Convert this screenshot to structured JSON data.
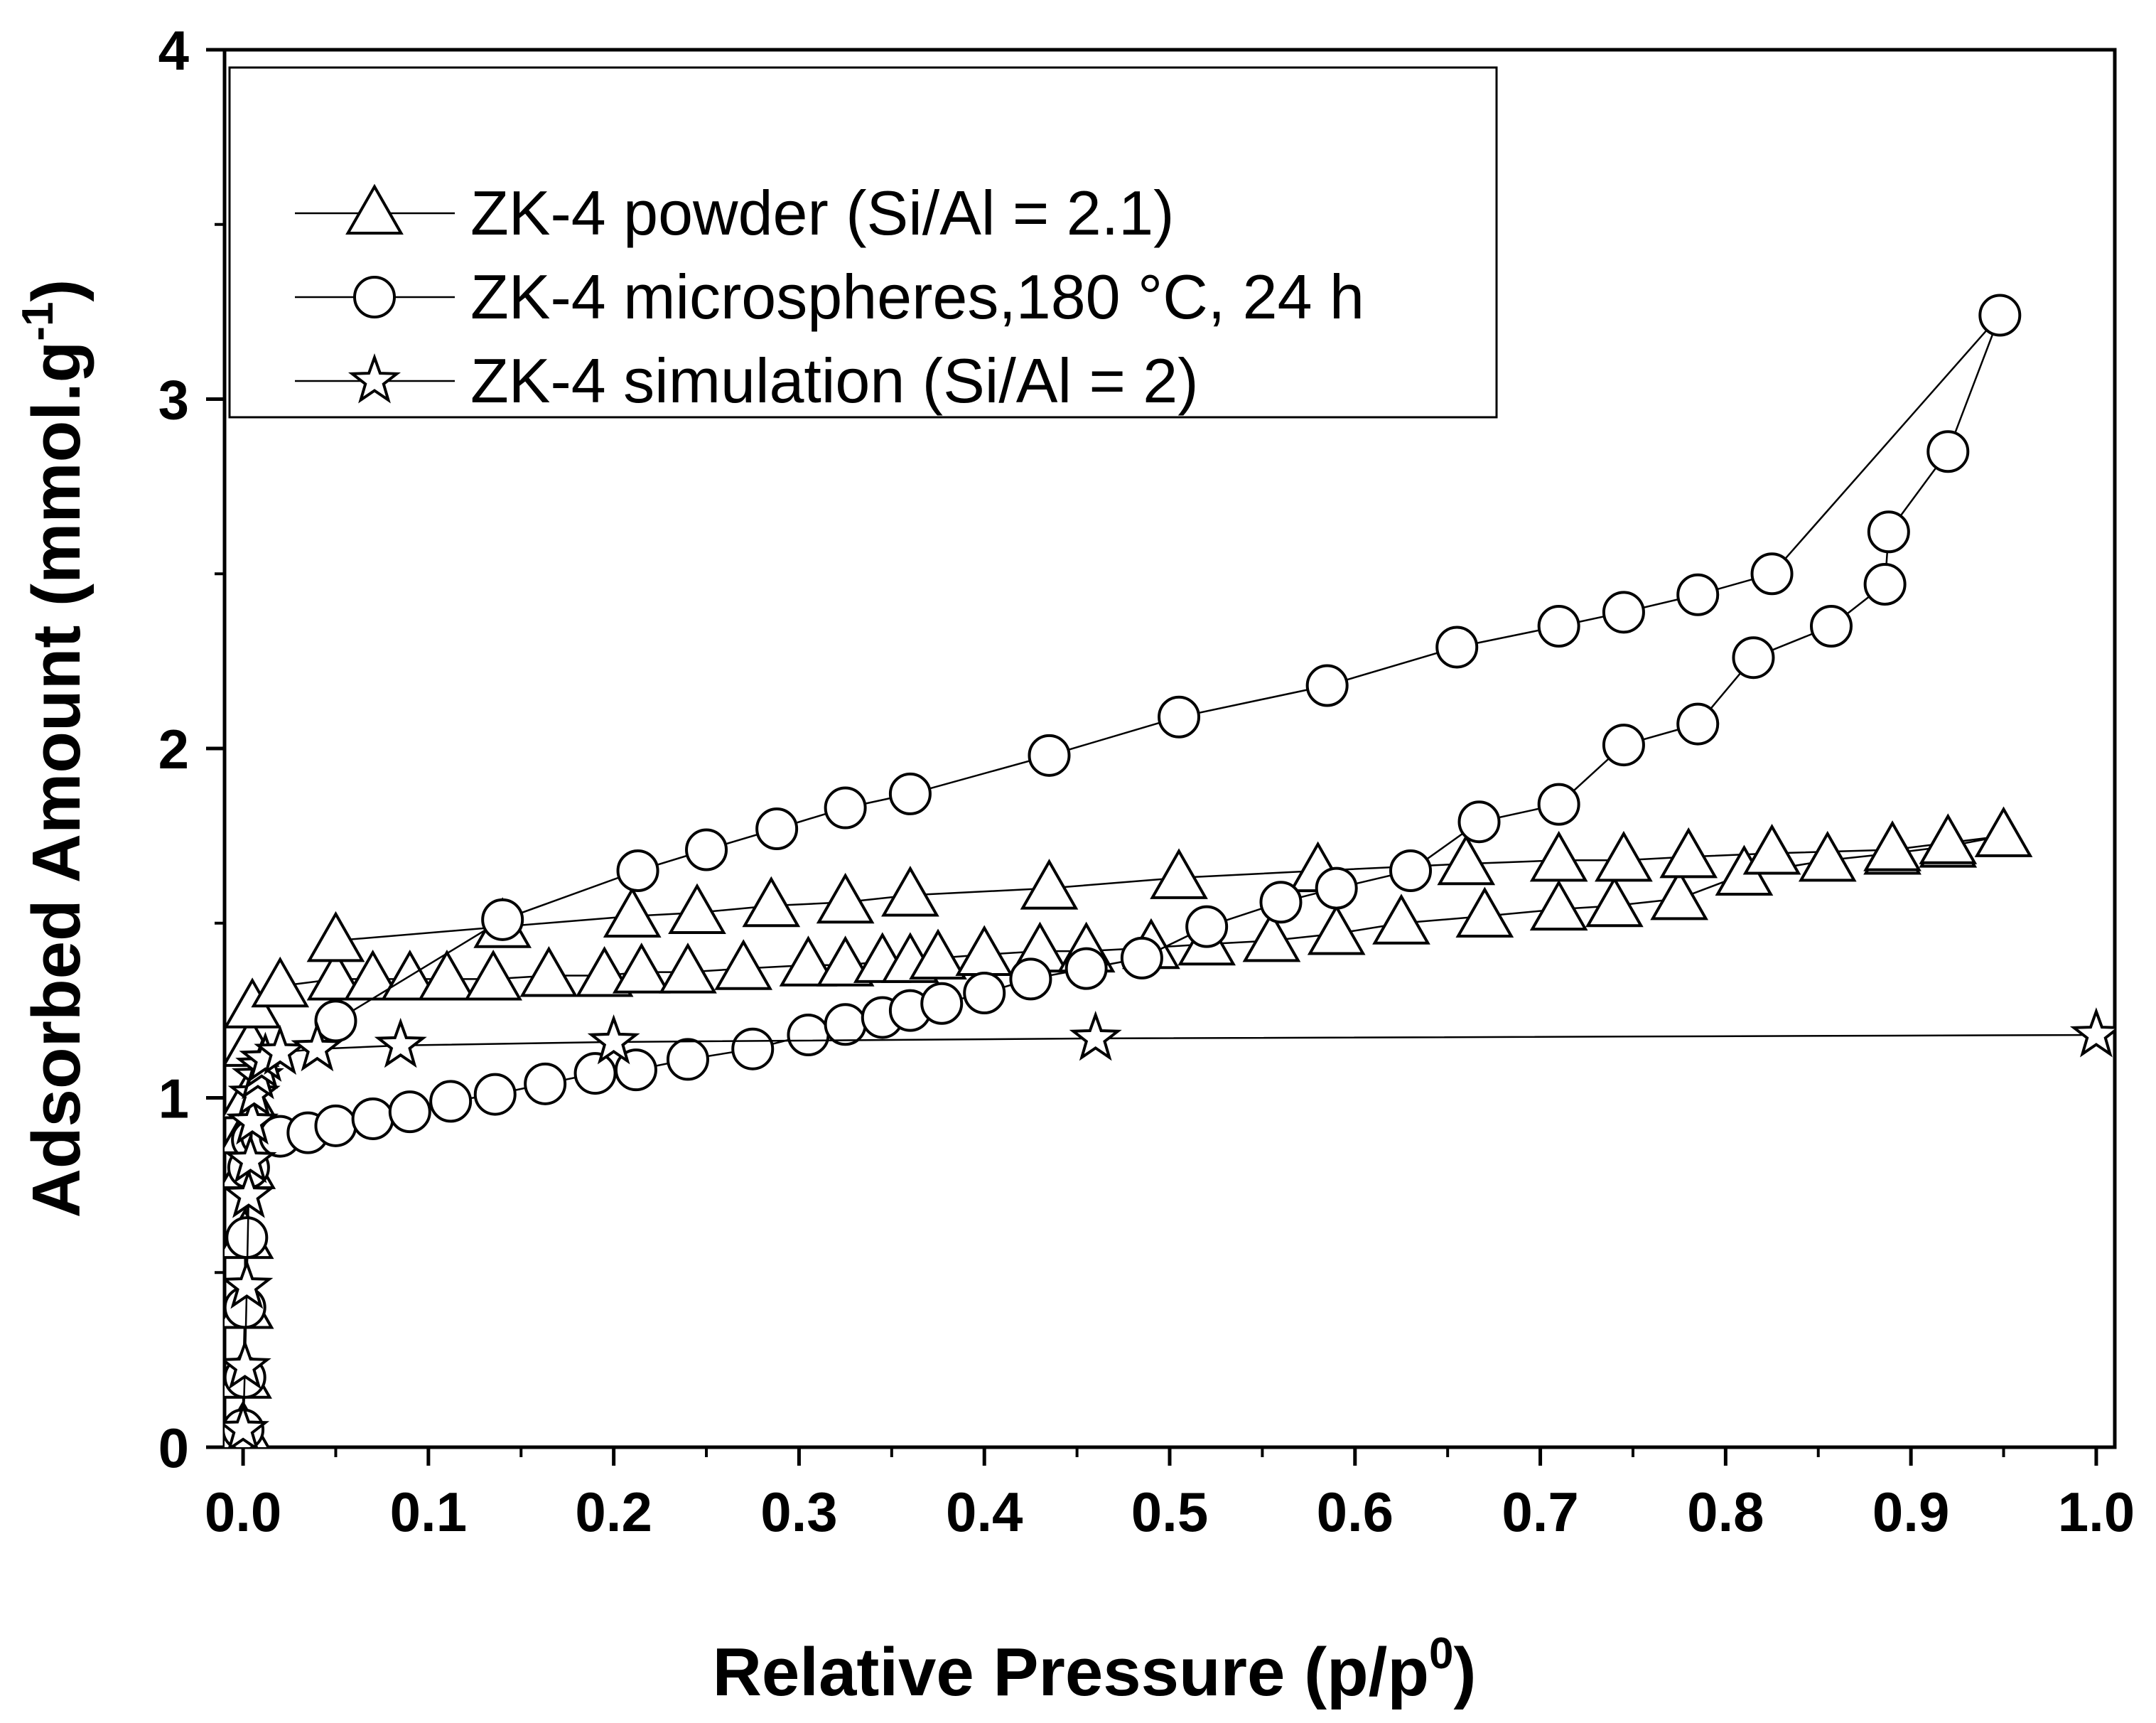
{
  "chart_data": {
    "type": "line",
    "title": "",
    "xlabel": "Relative Pressure (p/p",
    "xlabel_sup": "0",
    "xlabel_suffix": ")",
    "ylabel": "Adsorbed Amount (mmol.g",
    "ylabel_sup": "-1",
    "ylabel_suffix": ")",
    "xlim": [
      -0.01,
      1.01
    ],
    "ylim": [
      0,
      4
    ],
    "xticks": [
      0.0,
      0.1,
      0.2,
      0.3,
      0.4,
      0.5,
      0.6,
      0.7,
      0.8,
      0.9,
      1.0
    ],
    "xtick_labels": [
      "0.0",
      "0.1",
      "0.2",
      "0.3",
      "0.4",
      "0.5",
      "0.6",
      "0.7",
      "0.8",
      "0.9",
      "1.0"
    ],
    "yticks": [
      0,
      1,
      2,
      3,
      4
    ],
    "ytick_labels": [
      "0",
      "1",
      "2",
      "3",
      "4"
    ],
    "grid": false,
    "legend_position": "top-left",
    "series": [
      {
        "name": "ZK-4 powder (Si/Al = 2.1)",
        "marker": "triangle",
        "points": [
          [
            0.0,
            0.05
          ],
          [
            0.0,
            0.2
          ],
          [
            0.001,
            0.4
          ],
          [
            0.001,
            0.6
          ],
          [
            0.002,
            0.8
          ],
          [
            0.002,
            0.9
          ],
          [
            0.003,
            1.0
          ],
          [
            0.004,
            1.15
          ],
          [
            0.005,
            1.26
          ],
          [
            0.02,
            1.32
          ],
          [
            0.05,
            1.34
          ],
          [
            0.07,
            1.34
          ],
          [
            0.09,
            1.34
          ],
          [
            0.11,
            1.34
          ],
          [
            0.135,
            1.34
          ],
          [
            0.165,
            1.35
          ],
          [
            0.195,
            1.35
          ],
          [
            0.215,
            1.36
          ],
          [
            0.24,
            1.36
          ],
          [
            0.27,
            1.37
          ],
          [
            0.305,
            1.38
          ],
          [
            0.325,
            1.38
          ],
          [
            0.345,
            1.39
          ],
          [
            0.36,
            1.39
          ],
          [
            0.375,
            1.4
          ],
          [
            0.4,
            1.41
          ],
          [
            0.43,
            1.42
          ],
          [
            0.455,
            1.42
          ],
          [
            0.49,
            1.43
          ],
          [
            0.52,
            1.44
          ],
          [
            0.555,
            1.45
          ],
          [
            0.59,
            1.47
          ],
          [
            0.625,
            1.5
          ],
          [
            0.67,
            1.52
          ],
          [
            0.71,
            1.54
          ],
          [
            0.74,
            1.55
          ],
          [
            0.775,
            1.57
          ],
          [
            0.81,
            1.64
          ],
          [
            0.855,
            1.68
          ],
          [
            0.89,
            1.7
          ],
          [
            0.92,
            1.72
          ],
          [
            0.95,
            1.75
          ],
          [
            0.92,
            1.73
          ],
          [
            0.89,
            1.71
          ],
          [
            0.825,
            1.7
          ],
          [
            0.78,
            1.69
          ],
          [
            0.745,
            1.68
          ],
          [
            0.71,
            1.68
          ],
          [
            0.66,
            1.67
          ],
          [
            0.58,
            1.65
          ],
          [
            0.505,
            1.63
          ],
          [
            0.435,
            1.6
          ],
          [
            0.36,
            1.58
          ],
          [
            0.325,
            1.56
          ],
          [
            0.285,
            1.55
          ],
          [
            0.245,
            1.53
          ],
          [
            0.21,
            1.52
          ],
          [
            0.14,
            1.49
          ],
          [
            0.05,
            1.45
          ]
        ]
      },
      {
        "name": "ZK-4 microspheres,180 °C, 24 h",
        "marker": "circle",
        "points": [
          [
            0.0,
            0.05
          ],
          [
            0.001,
            0.2
          ],
          [
            0.001,
            0.4
          ],
          [
            0.002,
            0.6
          ],
          [
            0.003,
            0.8
          ],
          [
            0.005,
            0.88
          ],
          [
            0.01,
            0.89
          ],
          [
            0.02,
            0.89
          ],
          [
            0.035,
            0.9
          ],
          [
            0.05,
            0.92
          ],
          [
            0.07,
            0.94
          ],
          [
            0.09,
            0.96
          ],
          [
            0.112,
            0.99
          ],
          [
            0.136,
            1.01
          ],
          [
            0.163,
            1.04
          ],
          [
            0.19,
            1.07
          ],
          [
            0.212,
            1.08
          ],
          [
            0.24,
            1.11
          ],
          [
            0.275,
            1.14
          ],
          [
            0.305,
            1.18
          ],
          [
            0.325,
            1.21
          ],
          [
            0.345,
            1.23
          ],
          [
            0.36,
            1.25
          ],
          [
            0.377,
            1.27
          ],
          [
            0.4,
            1.3
          ],
          [
            0.425,
            1.34
          ],
          [
            0.455,
            1.37
          ],
          [
            0.485,
            1.4
          ],
          [
            0.52,
            1.49
          ],
          [
            0.56,
            1.56
          ],
          [
            0.59,
            1.6
          ],
          [
            0.63,
            1.65
          ],
          [
            0.667,
            1.79
          ],
          [
            0.71,
            1.84
          ],
          [
            0.745,
            2.01
          ],
          [
            0.785,
            2.07
          ],
          [
            0.815,
            2.26
          ],
          [
            0.857,
            2.35
          ],
          [
            0.886,
            2.47
          ],
          [
            0.888,
            2.62
          ],
          [
            0.92,
            2.85
          ],
          [
            0.948,
            3.24
          ],
          [
            0.825,
            2.5
          ],
          [
            0.785,
            2.44
          ],
          [
            0.745,
            2.39
          ],
          [
            0.71,
            2.35
          ],
          [
            0.655,
            2.29
          ],
          [
            0.585,
            2.18
          ],
          [
            0.505,
            2.09
          ],
          [
            0.435,
            1.98
          ],
          [
            0.36,
            1.87
          ],
          [
            0.325,
            1.83
          ],
          [
            0.288,
            1.77
          ],
          [
            0.25,
            1.71
          ],
          [
            0.213,
            1.65
          ],
          [
            0.14,
            1.51
          ],
          [
            0.05,
            1.22
          ]
        ]
      },
      {
        "name": "ZK-4 simulation (Si/Al = 2)",
        "marker": "star",
        "points": [
          [
            0.0,
            0.05
          ],
          [
            0.001,
            0.23
          ],
          [
            0.002,
            0.46
          ],
          [
            0.003,
            0.72
          ],
          [
            0.004,
            0.82
          ],
          [
            0.005,
            0.93
          ],
          [
            0.006,
            1.01
          ],
          [
            0.008,
            1.06
          ],
          [
            0.01,
            1.09
          ],
          [
            0.012,
            1.11
          ],
          [
            0.02,
            1.13
          ],
          [
            0.04,
            1.14
          ],
          [
            0.085,
            1.15
          ],
          [
            0.2,
            1.16
          ],
          [
            0.46,
            1.17
          ],
          [
            1.0,
            1.18
          ]
        ]
      }
    ]
  }
}
